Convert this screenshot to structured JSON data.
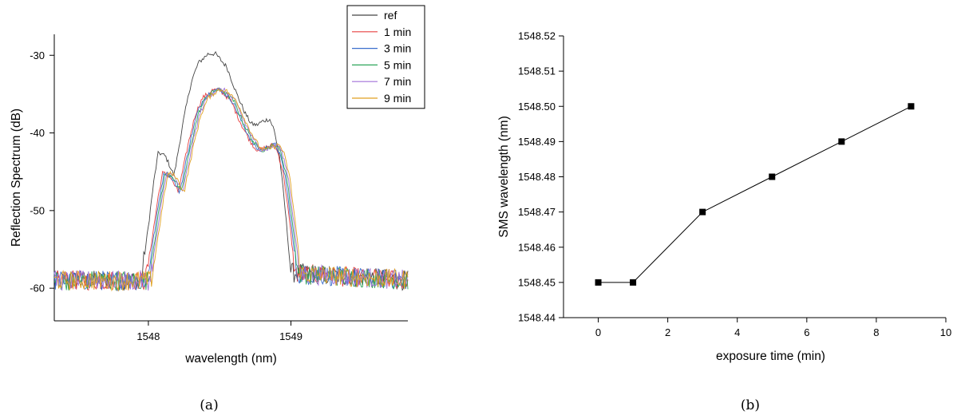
{
  "captions": [
    "(a)",
    "(b)"
  ],
  "chart_data": [
    {
      "type": "line",
      "xlabel": "wavelength (nm)",
      "ylabel": "Reflection Spectrum (dB)",
      "xlim": [
        1547.34,
        1549.82
      ],
      "ylim": [
        -64.2,
        -27.3
      ],
      "xticks": [
        1548,
        1549
      ],
      "yticks": [
        -30,
        -40,
        -50,
        -60
      ],
      "legend_position": "top-right",
      "series_shape": {
        "x": [
          1547.34,
          1547.95,
          1548.0,
          1548.04,
          1548.07,
          1548.12,
          1548.18,
          1548.25,
          1548.3,
          1548.35,
          1548.42,
          1548.47,
          1548.55,
          1548.62,
          1548.68,
          1548.72,
          1548.76,
          1548.8,
          1548.85,
          1548.88,
          1548.92,
          1548.96,
          1549.0,
          1549.82
        ],
        "y": [
          -59.0,
          -59.0,
          -52.0,
          -46.0,
          -42.5,
          -43.0,
          -45.5,
          -38.0,
          -33.5,
          -31.0,
          -29.8,
          -29.8,
          -31.5,
          -35.0,
          -37.5,
          -38.8,
          -39.0,
          -38.5,
          -38.2,
          -39.5,
          -43.0,
          -50.0,
          -58.0,
          -59.0
        ]
      },
      "series": [
        {
          "name": "ref",
          "color": "#444444",
          "shift": 0.0,
          "dy": 0.0,
          "scale": 1.0
        },
        {
          "name": "1 min",
          "color": "#e84040",
          "shift": 0.03,
          "dy": 0.0,
          "scale": 0.84
        },
        {
          "name": "3 min",
          "color": "#3a6fcc",
          "shift": 0.04,
          "dy": 0.0,
          "scale": 0.84
        },
        {
          "name": "5 min",
          "color": "#2ea65a",
          "shift": 0.05,
          "dy": 0.0,
          "scale": 0.84
        },
        {
          "name": "7 min",
          "color": "#a070d8",
          "shift": 0.06,
          "dy": 0.0,
          "scale": 0.84
        },
        {
          "name": "9 min",
          "color": "#e0a020",
          "shift": 0.07,
          "dy": 0.0,
          "scale": 0.84
        }
      ]
    },
    {
      "type": "scatter",
      "xlabel": "exposure time (min)",
      "ylabel": "SMS wavelength (nm)",
      "xlim": [
        -1,
        10
      ],
      "ylim": [
        1548.44,
        1548.52
      ],
      "xticks": [
        0,
        2,
        4,
        6,
        8,
        10
      ],
      "yticks": [
        1548.44,
        1548.45,
        1548.46,
        1548.47,
        1548.48,
        1548.49,
        1548.5,
        1548.51,
        1548.52
      ],
      "ytick_labels": [
        "1548.44",
        "1548.45",
        "1548.46",
        "1548.47",
        "1548.48",
        "1548.49",
        "1548.50",
        "1548.51",
        "1548.52"
      ],
      "x": [
        0,
        1,
        3,
        5,
        7,
        9
      ],
      "y": [
        1548.45,
        1548.45,
        1548.47,
        1548.48,
        1548.49,
        1548.5
      ],
      "marker": "square",
      "line": true
    }
  ]
}
